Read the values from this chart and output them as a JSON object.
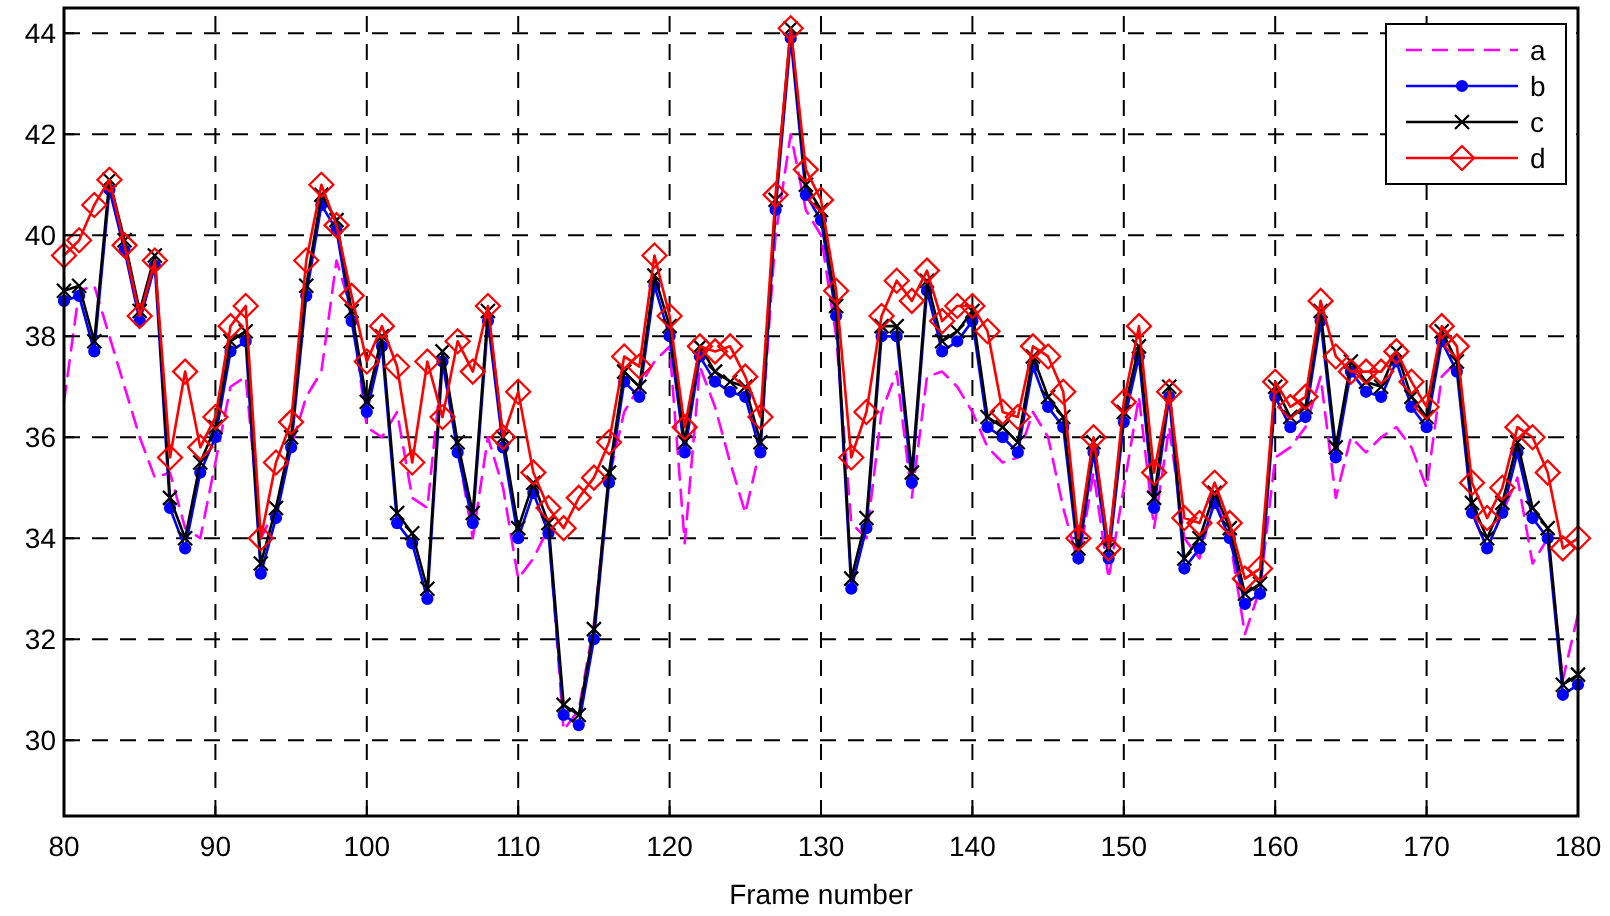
{
  "chart_data": {
    "type": "line",
    "xlabel": "Frame number",
    "x": [
      80,
      81,
      82,
      83,
      84,
      85,
      86,
      87,
      88,
      89,
      90,
      91,
      92,
      93,
      94,
      95,
      96,
      97,
      98,
      99,
      100,
      101,
      102,
      103,
      104,
      105,
      106,
      107,
      108,
      109,
      110,
      111,
      112,
      113,
      114,
      115,
      116,
      117,
      118,
      119,
      120,
      121,
      122,
      123,
      124,
      125,
      126,
      127,
      128,
      129,
      130,
      131,
      132,
      133,
      134,
      135,
      136,
      137,
      138,
      139,
      140,
      141,
      142,
      143,
      144,
      145,
      146,
      147,
      148,
      149,
      150,
      151,
      152,
      153,
      154,
      155,
      156,
      157,
      158,
      159,
      160,
      161,
      162,
      163,
      164,
      165,
      166,
      167,
      168,
      169,
      170,
      171,
      172,
      173,
      174,
      175,
      176,
      177,
      178,
      179,
      180
    ],
    "series": [
      {
        "name": "a",
        "color": "#ff00ff",
        "line_style": "dashed",
        "marker": "none",
        "values": [
          36.7,
          38.9,
          39.0,
          38.0,
          37.0,
          36.0,
          35.2,
          35.3,
          34.2,
          34.0,
          35.5,
          37.0,
          37.2,
          34.0,
          34.6,
          35.8,
          36.8,
          37.3,
          39.5,
          38.5,
          36.2,
          36.0,
          36.5,
          34.8,
          34.6,
          37.5,
          35.8,
          34.0,
          36.0,
          35.0,
          33.2,
          33.6,
          34.2,
          30.2,
          30.6,
          32.3,
          35.2,
          36.5,
          37.0,
          37.5,
          37.8,
          33.9,
          37.4,
          36.6,
          35.5,
          34.5,
          35.8,
          40.0,
          42.0,
          40.5,
          40.0,
          38.0,
          34.3,
          34.0,
          36.5,
          37.3,
          34.8,
          37.2,
          37.3,
          37.0,
          36.5,
          35.8,
          35.5,
          35.6,
          36.5,
          36.0,
          34.6,
          33.5,
          35.3,
          33.2,
          35.0,
          36.8,
          34.2,
          36.2,
          34.0,
          33.6,
          34.8,
          34.0,
          32.1,
          33.0,
          35.6,
          35.8,
          36.2,
          37.2,
          34.8,
          36.0,
          35.7,
          36.0,
          36.2,
          35.8,
          35.0,
          37.2,
          37.5,
          34.5,
          33.8,
          34.5,
          35.2,
          33.5,
          34.0,
          31.2,
          32.5
        ]
      },
      {
        "name": "b",
        "color": "#0000ff",
        "line_style": "solid",
        "marker": "circle",
        "values": [
          38.7,
          38.8,
          37.7,
          40.9,
          39.7,
          38.3,
          39.4,
          34.6,
          33.8,
          35.3,
          36.0,
          37.7,
          37.9,
          33.3,
          34.4,
          35.8,
          38.8,
          40.6,
          40.1,
          38.3,
          36.5,
          37.8,
          34.3,
          33.9,
          32.8,
          37.5,
          35.7,
          34.3,
          38.3,
          35.8,
          34.0,
          34.9,
          34.1,
          30.5,
          30.3,
          32.0,
          35.1,
          37.1,
          36.8,
          39.0,
          38.0,
          35.7,
          37.6,
          37.1,
          36.9,
          36.8,
          35.7,
          40.5,
          43.9,
          40.8,
          40.3,
          38.4,
          33.0,
          34.2,
          38.0,
          38.0,
          35.1,
          38.9,
          37.7,
          37.9,
          38.3,
          36.2,
          36.0,
          35.7,
          37.4,
          36.6,
          36.2,
          33.6,
          35.7,
          33.6,
          36.3,
          37.6,
          34.6,
          36.8,
          33.4,
          33.8,
          34.7,
          34.0,
          32.7,
          32.9,
          36.8,
          36.2,
          36.4,
          38.3,
          35.6,
          37.3,
          36.9,
          36.8,
          37.5,
          36.6,
          36.2,
          37.9,
          37.3,
          34.5,
          33.8,
          34.5,
          35.7,
          34.4,
          34.0,
          30.9,
          31.1
        ]
      },
      {
        "name": "c",
        "color": "#000000",
        "line_style": "solid",
        "marker": "cross",
        "values": [
          38.9,
          39.0,
          37.9,
          41.1,
          39.9,
          38.5,
          39.6,
          34.8,
          34.0,
          35.5,
          36.2,
          37.9,
          38.1,
          33.5,
          34.6,
          36.0,
          39.0,
          40.8,
          40.3,
          38.5,
          36.7,
          38.0,
          34.5,
          34.1,
          33.0,
          37.7,
          35.9,
          34.5,
          38.5,
          36.0,
          34.2,
          35.1,
          34.3,
          30.7,
          30.5,
          32.2,
          35.3,
          37.3,
          37.0,
          39.2,
          38.2,
          35.9,
          37.8,
          37.3,
          37.1,
          37.0,
          35.9,
          40.7,
          44.1,
          41.0,
          40.5,
          38.6,
          33.2,
          34.4,
          38.2,
          38.2,
          35.3,
          39.1,
          37.9,
          38.1,
          38.5,
          36.4,
          36.2,
          35.9,
          37.6,
          36.8,
          36.4,
          33.8,
          35.9,
          33.8,
          36.5,
          37.8,
          34.8,
          37.0,
          33.6,
          34.0,
          34.9,
          34.2,
          32.9,
          33.1,
          37.0,
          36.4,
          36.6,
          38.5,
          35.8,
          37.5,
          37.1,
          37.0,
          37.7,
          36.8,
          36.4,
          38.1,
          37.5,
          34.7,
          34.0,
          34.7,
          35.9,
          34.6,
          34.2,
          31.1,
          31.3
        ]
      },
      {
        "name": "d",
        "color": "#ff0000",
        "line_style": "solid",
        "marker": "diamond",
        "values": [
          39.6,
          39.9,
          40.6,
          41.1,
          39.8,
          38.4,
          39.5,
          35.6,
          37.3,
          35.8,
          36.4,
          38.2,
          38.6,
          34.0,
          35.5,
          36.3,
          39.5,
          41.0,
          40.2,
          38.8,
          37.5,
          38.2,
          37.4,
          35.5,
          37.5,
          36.4,
          37.9,
          37.3,
          38.6,
          36.0,
          36.9,
          35.3,
          34.6,
          34.2,
          34.8,
          35.2,
          35.9,
          37.6,
          37.4,
          39.6,
          38.4,
          36.2,
          37.8,
          37.7,
          37.8,
          37.2,
          36.4,
          40.8,
          44.1,
          41.3,
          40.7,
          38.9,
          35.6,
          36.5,
          38.4,
          39.1,
          38.7,
          39.3,
          38.3,
          38.6,
          38.6,
          38.1,
          36.5,
          36.4,
          37.8,
          37.6,
          36.9,
          34.0,
          36.0,
          33.8,
          36.7,
          38.2,
          35.3,
          36.9,
          34.4,
          34.3,
          35.1,
          34.3,
          33.2,
          33.4,
          37.1,
          36.6,
          36.8,
          38.7,
          37.6,
          37.3,
          37.3,
          37.3,
          37.7,
          37.1,
          36.6,
          38.2,
          37.8,
          35.1,
          34.4,
          35.0,
          36.2,
          36.0,
          35.3,
          33.8,
          34.0
        ]
      }
    ],
    "xlim": [
      80,
      180
    ],
    "xticks": [
      80,
      90,
      100,
      110,
      120,
      130,
      140,
      150,
      160,
      170,
      180
    ],
    "ylim": [
      28.5,
      44.5
    ],
    "yticks": [
      30,
      32,
      34,
      36,
      38,
      40,
      42,
      44
    ],
    "grid": true,
    "legend": "top right"
  }
}
